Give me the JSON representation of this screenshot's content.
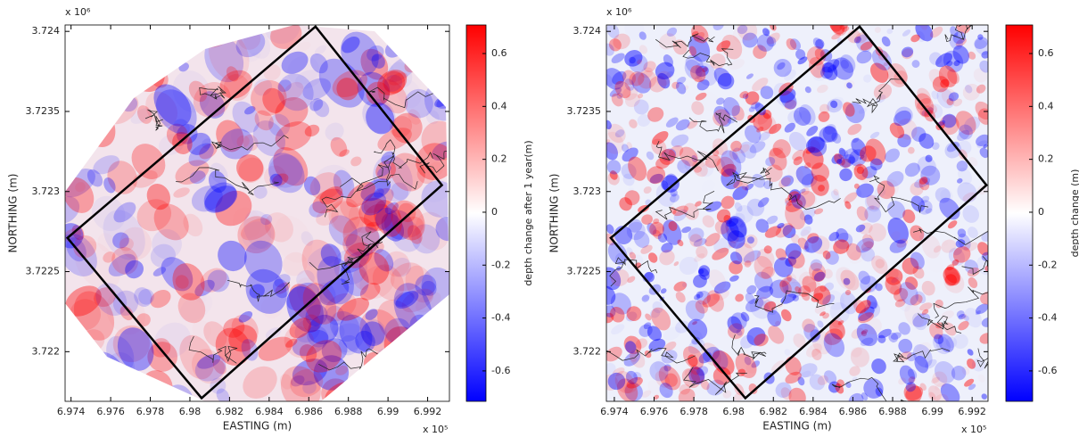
{
  "chart_data": [
    {
      "type": "heatmap",
      "xlabel": "EASTING (m)",
      "ylabel": "NORTHING (m)",
      "x_multiplier": "x 10⁵",
      "y_multiplier": "x 10⁶",
      "xlim": [
        6.9737,
        6.9931
      ],
      "ylim": [
        3.72169,
        3.72404
      ],
      "xticks": [
        6.974,
        6.976,
        6.978,
        6.98,
        6.982,
        6.984,
        6.986,
        6.988,
        6.99,
        6.992
      ],
      "yticks": [
        3.722,
        3.7225,
        3.723,
        3.7235,
        3.724
      ],
      "boundary": {
        "x": [
          6.98634,
          6.99272,
          6.98059,
          6.97382
        ],
        "y": [
          3.72403,
          3.72304,
          3.72171,
          3.72271
        ]
      },
      "colorbar": {
        "label": "depth change after 1 year(m)",
        "clim": [
          -0.715,
          0.708
        ],
        "ticks": [
          -0.6,
          -0.4,
          -0.2,
          0,
          0.2,
          0.4,
          0.6
        ],
        "colors": [
          "#0000ff",
          "#ffffff",
          "#ff0000"
        ]
      }
    },
    {
      "type": "heatmap",
      "xlabel": "EASTING (m)",
      "ylabel": "NORTHING (m)",
      "x_multiplier": "x 10⁵",
      "y_multiplier": "x 10⁶",
      "xlim": [
        6.9736,
        6.9928
      ],
      "ylim": [
        3.72169,
        3.72404
      ],
      "xticks": [
        6.974,
        6.976,
        6.978,
        6.98,
        6.982,
        6.984,
        6.986,
        6.988,
        6.99,
        6.992
      ],
      "yticks": [
        3.722,
        3.7225,
        3.723,
        3.7235,
        3.724
      ],
      "boundary": {
        "x": [
          6.98634,
          6.99272,
          6.98059,
          6.97382
        ],
        "y": [
          3.72403,
          3.72304,
          3.72171,
          3.72271
        ]
      },
      "colorbar": {
        "label": "depth change (m)",
        "clim": [
          -0.715,
          0.708
        ],
        "ticks": [
          -0.6,
          -0.4,
          -0.2,
          0,
          0.2,
          0.4,
          0.6
        ],
        "colors": [
          "#0000ff",
          "#ffffff",
          "#ff0000"
        ]
      }
    }
  ]
}
